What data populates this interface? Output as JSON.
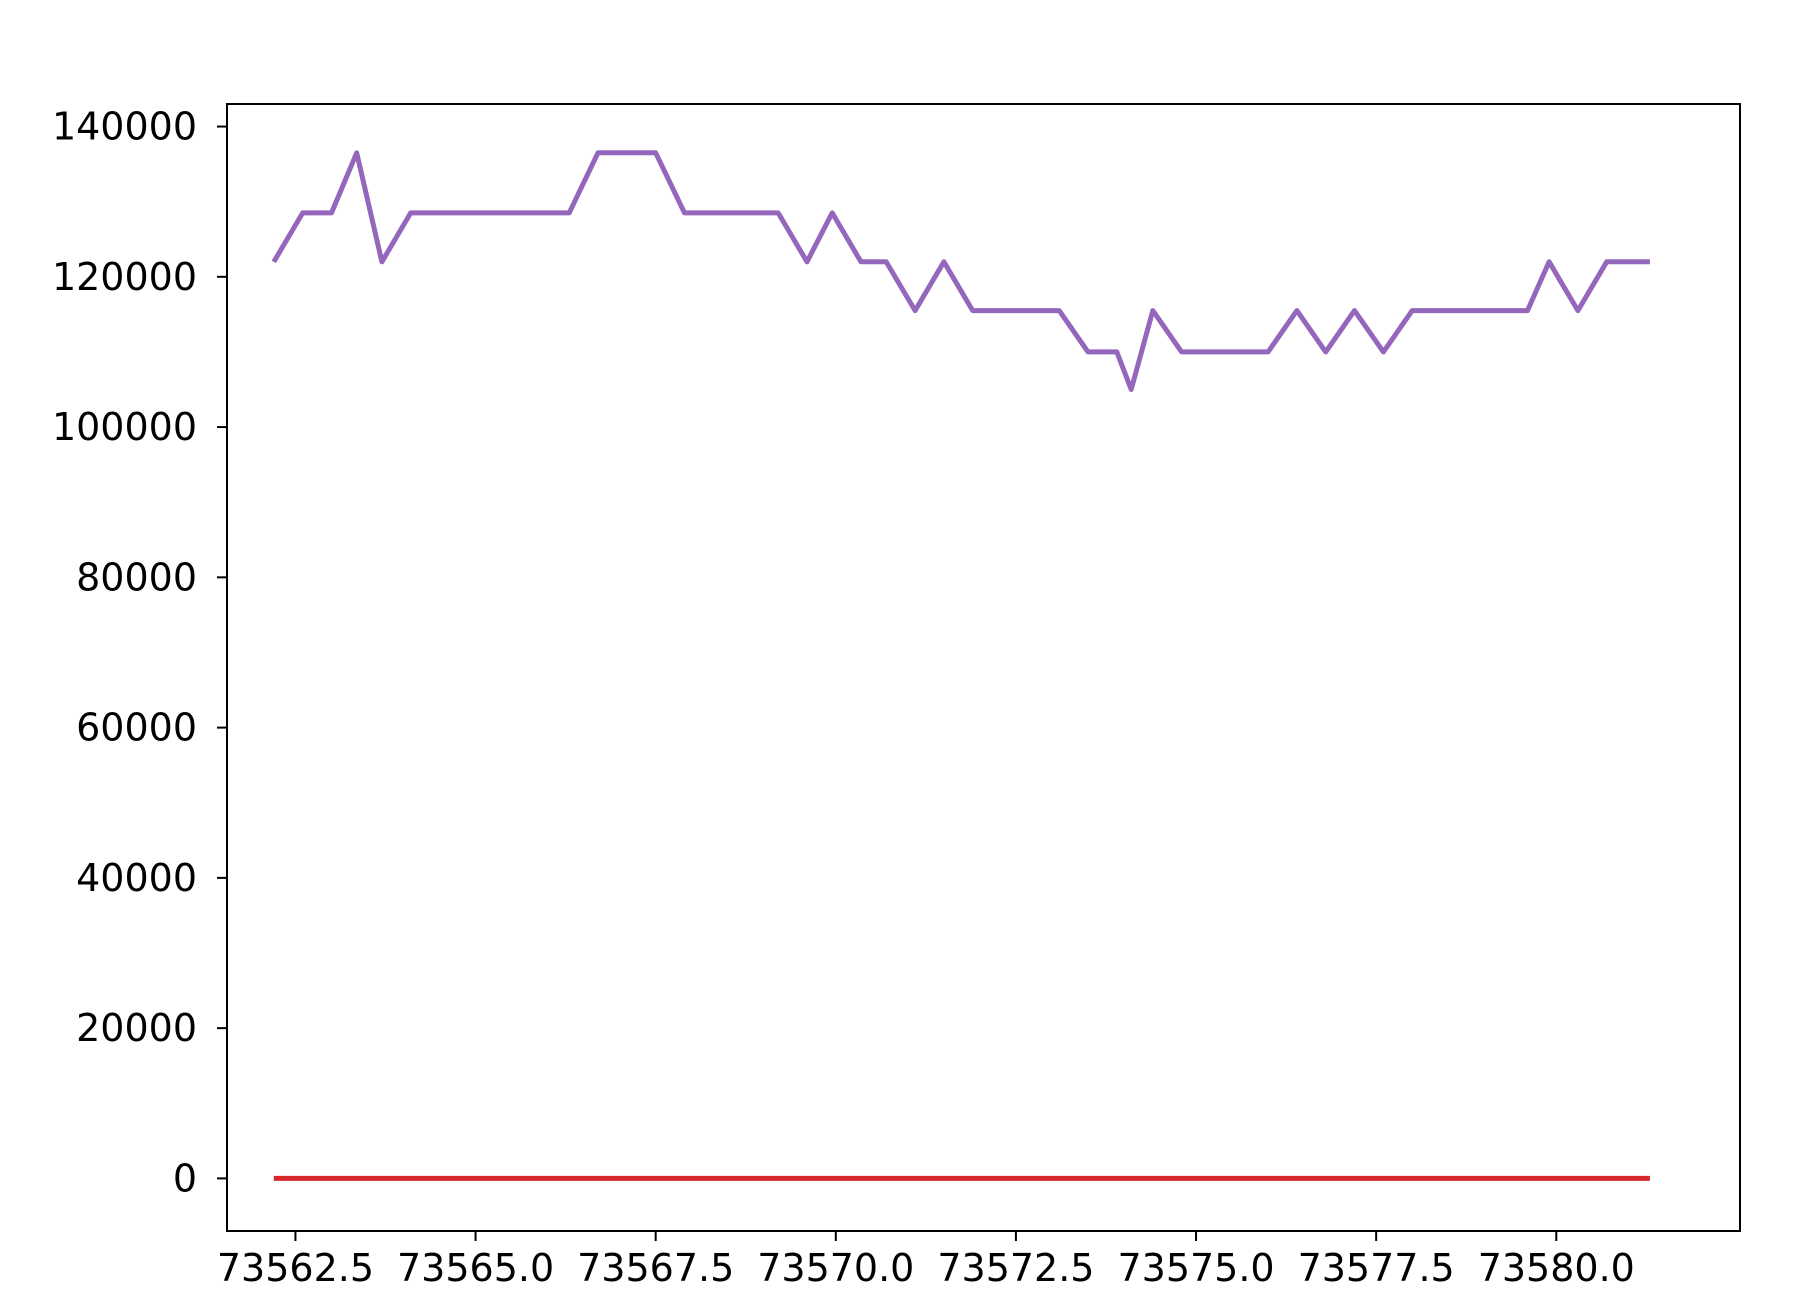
{
  "chart_data": {
    "type": "line",
    "title": "",
    "xlabel": "",
    "ylabel": "",
    "xlim": [
      73561.55,
      73582.55
    ],
    "ylim": [
      -7000,
      143000
    ],
    "grid": false,
    "legend": "none",
    "xticks": [
      73562.5,
      73565.0,
      73567.5,
      73570.0,
      73572.5,
      73575.0,
      73577.5,
      73580.0
    ],
    "xtick_labels": [
      "73562.5",
      "73565.0",
      "73567.5",
      "73570.0",
      "73572.5",
      "73575.0",
      "73577.5",
      "73580.0"
    ],
    "yticks": [
      0,
      20000,
      40000,
      60000,
      80000,
      100000,
      120000,
      140000
    ],
    "ytick_labels": [
      "0",
      "20000",
      "40000",
      "60000",
      "80000",
      "100000",
      "120000",
      "140000"
    ],
    "series": [
      {
        "color": "#9467bd",
        "x": [
          73562.2,
          73562.6,
          73563.0,
          73563.35,
          73563.7,
          73564.1,
          73564.5,
          73564.8,
          73565.2,
          73565.5,
          73565.9,
          73566.3,
          73566.7,
          73567.1,
          73567.5,
          73567.9,
          73568.3,
          73568.8,
          73569.2,
          73569.6,
          73569.95,
          73570.35,
          73570.7,
          73571.1,
          73571.5,
          73571.9,
          73572.3,
          73572.7,
          73573.1,
          73573.5,
          73573.9,
          73574.1,
          73574.4,
          73574.8,
          73575.2,
          73575.6,
          73576.0,
          73576.4,
          73576.8,
          73577.2,
          73577.6,
          73578.0,
          73578.4,
          73578.8,
          73579.2,
          73579.6,
          73579.9,
          73580.3,
          73580.7,
          73581.3
        ],
        "values": [
          122000,
          128500,
          128500,
          136500,
          122000,
          128500,
          128500,
          128500,
          128500,
          128500,
          128500,
          128500,
          136500,
          136500,
          136500,
          128500,
          128500,
          128500,
          128500,
          122000,
          128500,
          122000,
          122000,
          115500,
          122000,
          115500,
          115500,
          115500,
          115500,
          110000,
          110000,
          105000,
          115500,
          110000,
          110000,
          110000,
          110000,
          115500,
          110000,
          115500,
          110000,
          115500,
          115500,
          115500,
          115500,
          115500,
          122000,
          115500,
          122000,
          122000
        ]
      },
      {
        "color": "#d62728",
        "x": [
          73562.2,
          73581.3
        ],
        "values": [
          0,
          0
        ]
      }
    ]
  }
}
